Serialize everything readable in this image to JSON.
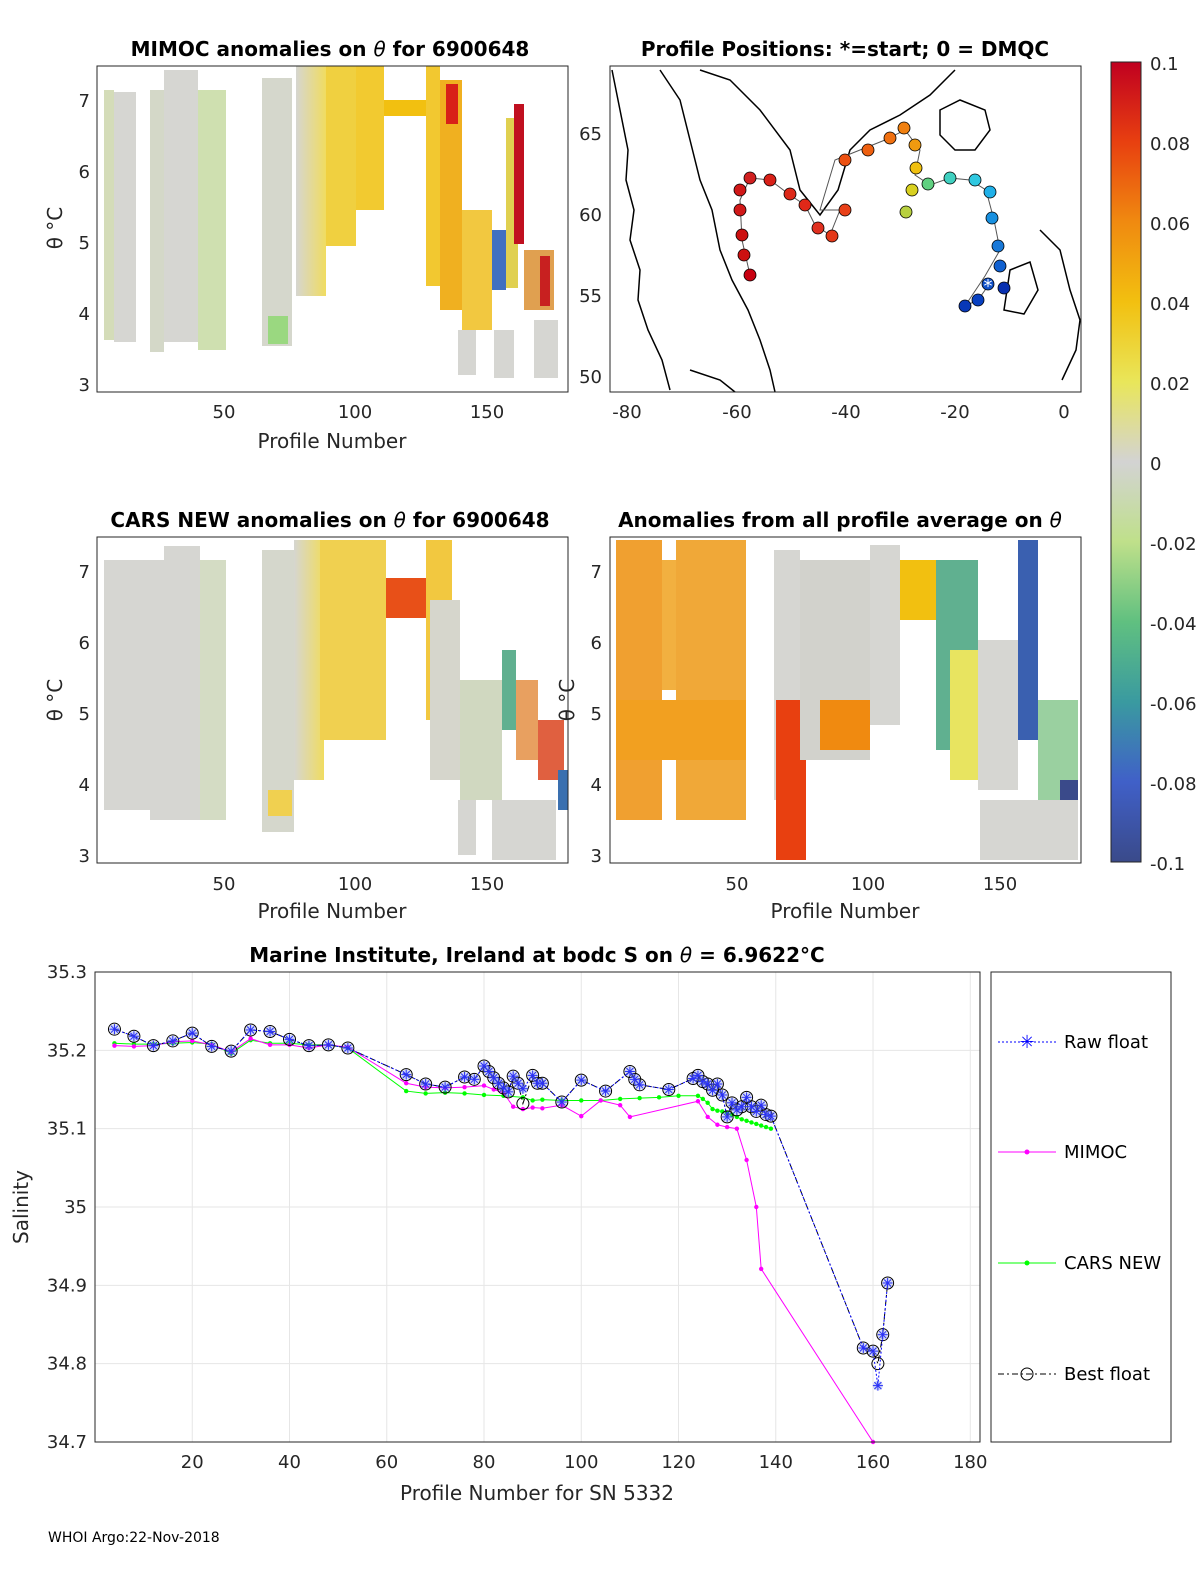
{
  "footer": "WHOI Argo:22-Nov-2018",
  "colorbar": {
    "ticks": [
      "0.1",
      "0.08",
      "0.06",
      "0.04",
      "0.02",
      "0",
      "-0.02",
      "-0.04",
      "-0.06",
      "-0.08",
      "-0.1"
    ],
    "stops": [
      "#c00020",
      "#e84010",
      "#f08a10",
      "#f2c010",
      "#e9e65a",
      "#d3d3d3",
      "#bfe08a",
      "#60c080",
      "#3a9aa0",
      "#4060c8",
      "#3a4a8a"
    ]
  },
  "panels": {
    "mimoc": {
      "title_pre": "MIMOC anomalies on ",
      "theta": "θ",
      "title_post": "  for 6900648",
      "xlabel": "Profile Number",
      "ylabel": "θ °C",
      "xticks": [
        "50",
        "100",
        "150"
      ],
      "yticks": [
        "7",
        "6",
        "5",
        "4",
        "3"
      ]
    },
    "positions": {
      "title": "Profile Positions: *=start; 0 = DMQC",
      "xticks": [
        "-80",
        "-60",
        "-40",
        "-20",
        "0"
      ],
      "yticks": [
        "65",
        "60",
        "55",
        "50"
      ]
    },
    "cars": {
      "title_pre": "CARS NEW anomalies on ",
      "theta": "θ",
      "title_post": " for 6900648",
      "xlabel": "Profile Number",
      "ylabel": "θ °C",
      "xticks": [
        "50",
        "100",
        "150"
      ],
      "yticks": [
        "7",
        "6",
        "5",
        "4",
        "3"
      ]
    },
    "average": {
      "title_pre": "Anomalies from all profile average on ",
      "theta": "θ",
      "xlabel": "Profile Number",
      "ylabel": "θ °C",
      "xticks": [
        "50",
        "100",
        "150"
      ],
      "yticks": [
        "7",
        "6",
        "5",
        "4",
        "3"
      ]
    }
  },
  "chart_data": {
    "type": "line",
    "title_pre": "Marine Institute, Ireland at bodc S on ",
    "theta": "θ",
    "title_post": " = 6.9622°C",
    "xlabel": "Profile Number for SN 5332",
    "ylabel": "Salinity",
    "xlim": [
      0,
      182
    ],
    "ylim": [
      34.7,
      35.3
    ],
    "xticks": [
      20,
      40,
      60,
      80,
      100,
      120,
      140,
      160,
      180
    ],
    "yticks": [
      35.3,
      35.2,
      35.1,
      35.0,
      34.9,
      34.8,
      34.7
    ],
    "ytick_labels": [
      "35.3",
      "35.2",
      "35.1",
      "35",
      "34.9",
      "34.8",
      "34.7"
    ],
    "grid": true,
    "legend_position": "outside-right",
    "series": [
      {
        "name": "Raw float",
        "color": "#0000ff",
        "x": [
          4,
          8,
          12,
          16,
          20,
          24,
          28,
          32,
          36,
          40,
          44,
          48,
          52,
          64,
          68,
          72,
          76,
          78,
          80,
          81,
          82,
          83,
          84,
          85,
          86,
          87,
          88,
          90,
          91,
          92,
          96,
          100,
          105,
          110,
          111,
          112,
          118,
          123,
          124,
          125,
          126,
          127,
          128,
          129,
          130,
          131,
          132,
          133,
          134,
          135,
          136,
          137,
          138,
          139,
          158,
          160,
          161,
          162,
          163
        ],
        "y": [
          35.227,
          35.218,
          35.206,
          35.212,
          35.222,
          35.205,
          35.199,
          35.226,
          35.224,
          35.214,
          35.206,
          35.207,
          35.203,
          35.169,
          35.157,
          35.153,
          35.166,
          35.163,
          35.18,
          35.173,
          35.165,
          35.158,
          35.152,
          35.147,
          35.167,
          35.158,
          35.151,
          35.168,
          35.158,
          35.158,
          35.134,
          35.162,
          35.148,
          35.173,
          35.163,
          35.156,
          35.15,
          35.164,
          35.168,
          35.16,
          35.157,
          35.149,
          35.157,
          35.143,
          35.115,
          35.133,
          35.124,
          35.128,
          35.14,
          35.128,
          35.122,
          35.13,
          35.118,
          35.116,
          34.82,
          34.816,
          34.772,
          34.837,
          34.903
        ]
      },
      {
        "name": "MIMOC",
        "color": "#ff00ff",
        "x": [
          4,
          8,
          12,
          16,
          20,
          24,
          28,
          32,
          36,
          40,
          44,
          48,
          52,
          64,
          68,
          72,
          76,
          80,
          82,
          84,
          86,
          88,
          90,
          92,
          96,
          100,
          104,
          108,
          110,
          124,
          126,
          128,
          130,
          132,
          134,
          136,
          137,
          160
        ],
        "y": [
          35.206,
          35.205,
          35.206,
          35.211,
          35.212,
          35.207,
          35.198,
          35.215,
          35.207,
          35.207,
          35.203,
          35.207,
          35.204,
          35.158,
          35.153,
          35.152,
          35.153,
          35.155,
          35.15,
          35.146,
          35.128,
          35.125,
          35.127,
          35.126,
          35.13,
          35.116,
          35.136,
          35.13,
          35.115,
          35.135,
          35.115,
          35.105,
          35.102,
          35.1,
          35.06,
          35.0,
          34.921,
          34.7
        ]
      },
      {
        "name": "CARS NEW",
        "color": "#00ff00",
        "x": [
          4,
          8,
          12,
          16,
          20,
          24,
          28,
          32,
          36,
          40,
          44,
          48,
          52,
          64,
          68,
          72,
          76,
          80,
          84,
          88,
          90,
          92,
          96,
          100,
          104,
          108,
          112,
          116,
          120,
          124,
          125,
          126,
          127,
          128,
          129,
          130,
          131,
          132,
          133,
          134,
          135,
          136,
          137,
          138,
          139
        ],
        "y": [
          35.209,
          35.208,
          35.208,
          35.209,
          35.21,
          35.208,
          35.196,
          35.213,
          35.209,
          35.209,
          35.207,
          35.207,
          35.203,
          35.148,
          35.145,
          35.146,
          35.145,
          35.143,
          35.142,
          35.14,
          35.136,
          35.137,
          35.136,
          35.136,
          35.136,
          35.138,
          35.139,
          35.14,
          35.142,
          35.142,
          35.138,
          35.133,
          35.125,
          35.123,
          35.122,
          35.12,
          35.118,
          35.115,
          35.112,
          35.11,
          35.108,
          35.106,
          35.104,
          35.102,
          35.1
        ]
      },
      {
        "name": "Best float",
        "color": "#000000",
        "x": [
          4,
          8,
          12,
          16,
          20,
          24,
          28,
          32,
          36,
          40,
          44,
          48,
          52,
          64,
          68,
          72,
          76,
          78,
          80,
          81,
          82,
          83,
          84,
          85,
          86,
          87,
          88,
          90,
          91,
          92,
          96,
          100,
          105,
          110,
          111,
          112,
          118,
          123,
          124,
          125,
          126,
          127,
          128,
          129,
          130,
          131,
          132,
          133,
          134,
          135,
          136,
          137,
          138,
          139,
          158,
          160,
          161,
          162,
          163
        ],
        "y": [
          35.227,
          35.218,
          35.206,
          35.212,
          35.222,
          35.205,
          35.199,
          35.226,
          35.224,
          35.214,
          35.206,
          35.207,
          35.203,
          35.169,
          35.157,
          35.153,
          35.166,
          35.163,
          35.18,
          35.173,
          35.165,
          35.158,
          35.152,
          35.147,
          35.167,
          35.158,
          35.132,
          35.168,
          35.158,
          35.158,
          35.134,
          35.162,
          35.148,
          35.173,
          35.163,
          35.156,
          35.15,
          35.164,
          35.168,
          35.16,
          35.157,
          35.149,
          35.157,
          35.143,
          35.115,
          35.133,
          35.124,
          35.128,
          35.14,
          35.128,
          35.122,
          35.13,
          35.118,
          35.116,
          34.82,
          34.816,
          34.8,
          34.837,
          34.903
        ]
      }
    ]
  }
}
